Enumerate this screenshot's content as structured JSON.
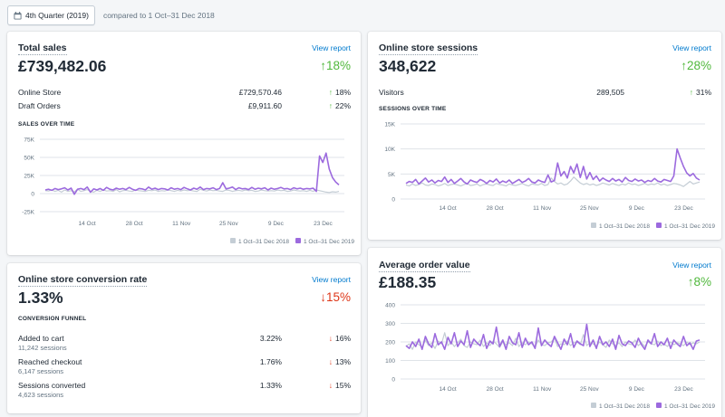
{
  "header": {
    "date_range": "4th Quarter (2019)",
    "compare_text": "compared to 1 Oct–31 Dec 2018"
  },
  "colors": {
    "current": "#9c6ade",
    "previous": "#c4cdd5",
    "up": "#50b83c",
    "down": "#de3618",
    "link": "#007ace"
  },
  "total_sales": {
    "title": "Total sales",
    "view_report": "View report",
    "value": "£739,482.06",
    "change": "18%",
    "change_dir": "up",
    "rows": [
      {
        "label": "Online Store",
        "value": "£729,570.46",
        "change": "18%",
        "dir": "up"
      },
      {
        "label": "Draft Orders",
        "value": "£9,911.60",
        "change": "22%",
        "dir": "up"
      }
    ],
    "chart_title": "SALES OVER TIME"
  },
  "sessions": {
    "title": "Online store sessions",
    "view_report": "View report",
    "value": "348,622",
    "change": "28%",
    "change_dir": "up",
    "rows": [
      {
        "label": "Visitors",
        "value": "289,505",
        "change": "31%",
        "dir": "up"
      }
    ],
    "chart_title": "SESSIONS OVER TIME"
  },
  "conversion": {
    "title": "Online store conversion rate",
    "view_report": "View report",
    "value": "1.33%",
    "change": "15%",
    "change_dir": "down",
    "funnel_title": "CONVERSION FUNNEL",
    "rows": [
      {
        "label": "Added to cart",
        "sub": "11,242 sessions",
        "value": "3.22%",
        "change": "16%",
        "dir": "down"
      },
      {
        "label": "Reached checkout",
        "sub": "6,147 sessions",
        "value": "1.76%",
        "change": "13%",
        "dir": "down"
      },
      {
        "label": "Sessions converted",
        "sub": "4,623 sessions",
        "value": "1.33%",
        "change": "15%",
        "dir": "down"
      }
    ]
  },
  "aov": {
    "title": "Average order value",
    "view_report": "View report",
    "value": "£188.35",
    "change": "8%",
    "change_dir": "up"
  },
  "chart_data": [
    {
      "id": "sales",
      "type": "line",
      "xlabels": [
        "14 Oct",
        "28 Oct",
        "11 Nov",
        "25 Nov",
        "9 Dec",
        "23 Dec"
      ],
      "yticks": [
        "75K",
        "50K",
        "25K",
        "0",
        "-25K"
      ],
      "ylim": [
        -25000,
        75000
      ],
      "series": [
        {
          "name": "1 Oct–31 Dec 2018",
          "color": "#c4cdd5",
          "values": [
            4000,
            3500,
            5000,
            3000,
            4500,
            2000,
            5000,
            3000,
            4000,
            2500,
            6000,
            3000,
            4000,
            5500,
            3000,
            2000,
            4500,
            3000,
            5000,
            3500,
            4000,
            3000,
            5500,
            2500,
            4000,
            4500,
            3500,
            3000,
            5000,
            4000,
            3500,
            3000,
            4500,
            4000,
            5000,
            3000,
            4000,
            3500,
            5000,
            4000,
            3000,
            4500,
            3500,
            5000,
            4000,
            4500,
            3500,
            3000,
            6000,
            4500,
            3500,
            5000,
            4000,
            4500,
            3500,
            3000,
            5000,
            4500,
            3000,
            4000,
            4500,
            3500,
            5000,
            4000,
            4500,
            3000,
            3500,
            5000,
            4000,
            3500,
            4000,
            3500,
            5000,
            4000,
            4500,
            3000,
            3500,
            5000,
            4000,
            3500,
            4000,
            3000,
            4500,
            3000,
            5000,
            4000,
            3000,
            2000,
            1500,
            2500,
            2000,
            3000
          ]
        },
        {
          "name": "1 Oct–31 Dec 2019",
          "color": "#9c6ade",
          "values": [
            5000,
            6000,
            4500,
            7000,
            5500,
            6500,
            8000,
            5000,
            7500,
            -1000,
            6000,
            7000,
            5500,
            9000,
            2000,
            6500,
            5000,
            7000,
            4500,
            8500,
            6000,
            5000,
            7500,
            6000,
            7000,
            5500,
            8500,
            6000,
            4500,
            7000,
            6500,
            5000,
            9000,
            6000,
            7500,
            5500,
            7000,
            6500,
            5000,
            8000,
            6000,
            7000,
            5500,
            8500,
            6500,
            5000,
            7500,
            6000,
            9000,
            5500,
            7000,
            6500,
            8000,
            5500,
            7000,
            15000,
            6500,
            7500,
            9000,
            5500,
            8000,
            6500,
            7000,
            5500,
            8500,
            6000,
            7500,
            6500,
            8000,
            5000,
            7500,
            6000,
            7000,
            8500,
            6500,
            7000,
            5500,
            8000,
            6500,
            7500,
            6000,
            7000,
            6500,
            7500,
            3000,
            52000,
            43000,
            56000,
            34000,
            22000,
            16000,
            12000
          ]
        }
      ]
    },
    {
      "id": "sessions",
      "type": "line",
      "xlabels": [
        "14 Oct",
        "28 Oct",
        "11 Nov",
        "25 Nov",
        "9 Dec",
        "23 Dec"
      ],
      "yticks": [
        "15K",
        "10K",
        "5K",
        "0"
      ],
      "ylim": [
        0,
        15000
      ],
      "series": [
        {
          "name": "1 Oct–31 Dec 2018",
          "color": "#c4cdd5",
          "values": [
            2800,
            2600,
            3000,
            2700,
            2900,
            3200,
            2800,
            2700,
            3000,
            2900,
            2600,
            2800,
            3100,
            2700,
            2900,
            3000,
            2800,
            2600,
            2900,
            3100,
            2700,
            2800,
            3000,
            2600,
            2900,
            3000,
            2800,
            2700,
            3100,
            2900,
            2800,
            2600,
            3000,
            2800,
            2700,
            2900,
            3100,
            2800,
            2600,
            3000,
            2900,
            2800,
            3100,
            2700,
            2900,
            4200,
            3500,
            3000,
            3200,
            2800,
            3000,
            3600,
            4400,
            3800,
            3200,
            2900,
            3100,
            2800,
            3000,
            2700,
            2900,
            3200,
            3000,
            2800,
            3100,
            2900,
            2700,
            3000,
            2800,
            3200,
            2900,
            3000,
            2700,
            2900,
            3100,
            2800,
            3000,
            2900,
            3200,
            2800,
            3000,
            2700,
            2900,
            3100,
            3000,
            2800,
            2500,
            3000,
            3500,
            3000,
            3200,
            3400
          ]
        },
        {
          "name": "1 Oct–31 Dec 2019",
          "color": "#9c6ade",
          "values": [
            3100,
            3500,
            3300,
            3900,
            3000,
            3600,
            4200,
            3400,
            3800,
            3200,
            3700,
            3500,
            4400,
            3300,
            3900,
            3100,
            3600,
            4100,
            3400,
            3000,
            3800,
            3500,
            3300,
            3900,
            3600,
            3100,
            3700,
            3400,
            4000,
            3200,
            3600,
            3300,
            3800,
            3100,
            3500,
            3900,
            3300,
            3600,
            4100,
            3400,
            3200,
            3800,
            3500,
            3300,
            4800,
            3400,
            3700,
            7200,
            4600,
            5500,
            4200,
            6500,
            5200,
            7000,
            4300,
            6500,
            4000,
            5300,
            3900,
            4600,
            3600,
            4200,
            3800,
            3500,
            4100,
            3600,
            3900,
            3400,
            4300,
            3700,
            3500,
            4000,
            3600,
            3800,
            3300,
            3700,
            3500,
            4100,
            3600,
            3400,
            3900,
            3700,
            3500,
            4600,
            10000,
            8200,
            6500,
            5200,
            4600,
            5100,
            4200,
            3800
          ]
        }
      ]
    },
    {
      "id": "aov",
      "type": "line",
      "xlabels": [
        "14 Oct",
        "28 Oct",
        "11 Nov",
        "25 Nov",
        "9 Dec",
        "23 Dec"
      ],
      "yticks": [
        "400",
        "300",
        "200",
        "100",
        "0"
      ],
      "ylim": [
        0,
        400
      ],
      "series": [
        {
          "name": "1 Oct–31 Dec 2018",
          "color": "#c4cdd5",
          "values": [
            175,
            190,
            160,
            200,
            185,
            170,
            210,
            180,
            195,
            165,
            205,
            190,
            250,
            180,
            200,
            175,
            195,
            215,
            180,
            170,
            200,
            190,
            185,
            210,
            175,
            195,
            180,
            205,
            190,
            170,
            200,
            185,
            195,
            180,
            220,
            175,
            195,
            185,
            200,
            190,
            170,
            210,
            185,
            180,
            195,
            200,
            220,
            175,
            190,
            185,
            205,
            180,
            195,
            200,
            185,
            240,
            180,
            195,
            190,
            175,
            200,
            185,
            170,
            210,
            190,
            180,
            195,
            175,
            200,
            190,
            185,
            210,
            180,
            195,
            175,
            200,
            190,
            185,
            205,
            180,
            190,
            175,
            200,
            185,
            195,
            190,
            180,
            200,
            185,
            195,
            190,
            200
          ]
        },
        {
          "name": "1 Oct–31 Dec 2019",
          "color": "#9c6ade",
          "values": [
            180,
            165,
            200,
            175,
            215,
            160,
            230,
            190,
            170,
            245,
            185,
            200,
            160,
            225,
            190,
            250,
            175,
            205,
            185,
            260,
            170,
            215,
            195,
            180,
            240,
            165,
            205,
            190,
            280,
            175,
            210,
            160,
            230,
            195,
            185,
            250,
            170,
            220,
            185,
            200,
            165,
            275,
            180,
            210,
            190,
            175,
            230,
            195,
            160,
            215,
            185,
            245,
            170,
            205,
            190,
            180,
            295,
            175,
            210,
            165,
            230,
            185,
            200,
            175,
            215,
            160,
            235,
            190,
            180,
            205,
            195,
            170,
            220,
            185,
            160,
            210,
            190,
            245,
            175,
            200,
            185,
            220,
            165,
            210,
            190,
            175,
            230,
            180,
            195,
            160,
            205,
            210
          ]
        }
      ]
    }
  ]
}
